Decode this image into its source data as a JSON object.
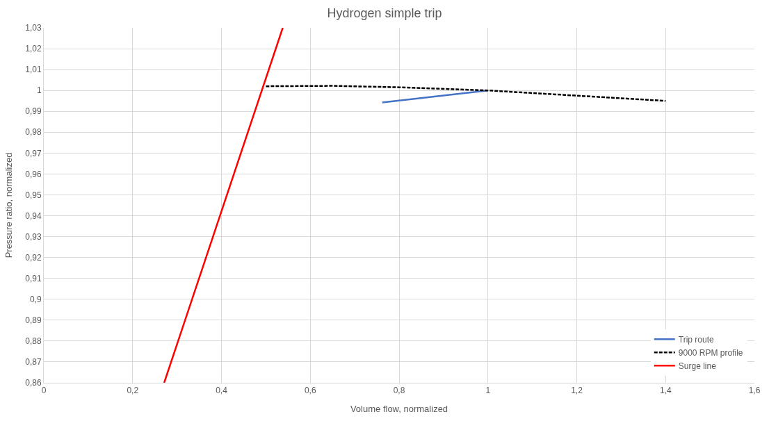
{
  "chart_data": {
    "type": "line",
    "title": "Hydrogen simple trip",
    "xlabel": "Volume flow, normalized",
    "ylabel": "Pressure ratio, normalized",
    "xlim": [
      0,
      1.6
    ],
    "ylim": [
      0.86,
      1.03
    ],
    "xticks": [
      0,
      {
        "value": 0.2,
        "label": "0,2"
      },
      {
        "value": 0.4,
        "label": "0,4"
      },
      {
        "value": 0.6,
        "label": "0,6"
      },
      {
        "value": 0.8,
        "label": "0,8"
      },
      1,
      {
        "value": 1.2,
        "label": "1,2"
      },
      {
        "value": 1.4,
        "label": "1,4"
      },
      {
        "value": 1.6,
        "label": "1,6"
      }
    ],
    "yticks": [
      {
        "value": 0.86,
        "label": "0,86"
      },
      {
        "value": 0.87,
        "label": "0,87"
      },
      {
        "value": 0.88,
        "label": "0,88"
      },
      {
        "value": 0.89,
        "label": "0,89"
      },
      {
        "value": 0.9,
        "label": "0,9"
      },
      {
        "value": 0.91,
        "label": "0,91"
      },
      {
        "value": 0.92,
        "label": "0,92"
      },
      {
        "value": 0.93,
        "label": "0,93"
      },
      {
        "value": 0.94,
        "label": "0,94"
      },
      {
        "value": 0.95,
        "label": "0,95"
      },
      {
        "value": 0.96,
        "label": "0,96"
      },
      {
        "value": 0.97,
        "label": "0,97"
      },
      {
        "value": 0.98,
        "label": "0,98"
      },
      {
        "value": 0.99,
        "label": "0,99"
      },
      1,
      {
        "value": 1.01,
        "label": "1,01"
      },
      {
        "value": 1.02,
        "label": "1,02"
      },
      {
        "value": 1.03,
        "label": "1,03"
      }
    ],
    "grid": true,
    "legend": "bottom right",
    "marker": "none",
    "series": [
      {
        "name": "Trip route",
        "color": "#4472c4",
        "x": [
          0.762,
          1.0
        ],
        "values": [
          0.9942,
          1.0
        ],
        "line_style": "solid"
      },
      {
        "name": "9000 RPM profile",
        "color": "#000000",
        "x": [
          0.5,
          0.65,
          0.8,
          1.0,
          1.2,
          1.4
        ],
        "values": [
          1.002,
          1.0022,
          1.0015,
          1.0,
          0.9975,
          0.995
        ],
        "line_style": "dashed"
      },
      {
        "name": "Surge line",
        "color": "#ff0000",
        "x": [
          0.271,
          0.538
        ],
        "values": [
          0.86,
          1.03
        ],
        "line_style": "solid"
      }
    ]
  }
}
